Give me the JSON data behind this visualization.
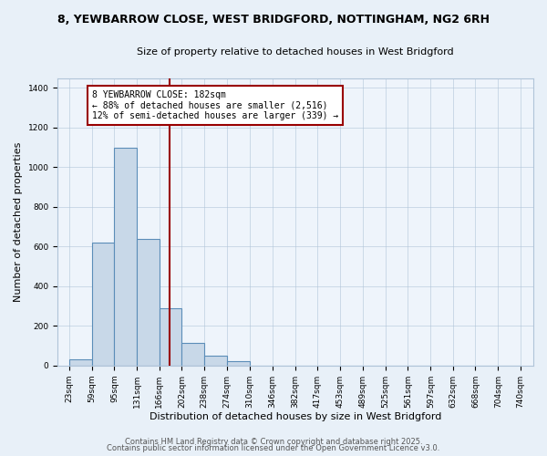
{
  "title": "8, YEWBARROW CLOSE, WEST BRIDGFORD, NOTTINGHAM, NG2 6RH",
  "subtitle": "Size of property relative to detached houses in West Bridgford",
  "xlabel": "Distribution of detached houses by size in West Bridgford",
  "ylabel": "Number of detached properties",
  "bar_left_edges": [
    23,
    59,
    95,
    131,
    166,
    202,
    238,
    274,
    310,
    346,
    382,
    417,
    453,
    489,
    525,
    561,
    597,
    632,
    668,
    704
  ],
  "bar_heights": [
    30,
    620,
    1100,
    640,
    290,
    115,
    50,
    20,
    0,
    0,
    0,
    0,
    0,
    0,
    0,
    0,
    0,
    0,
    0,
    0
  ],
  "bin_width": 36,
  "bar_color": "#c8d8e8",
  "bar_edge_color": "#5b8db8",
  "vline_x": 182,
  "vline_color": "#990000",
  "annotation_text": "8 YEWBARROW CLOSE: 182sqm\n← 88% of detached houses are smaller (2,516)\n12% of semi-detached houses are larger (339) →",
  "annotation_box_facecolor": "#ffffff",
  "annotation_box_edgecolor": "#990000",
  "ylim": [
    0,
    1450
  ],
  "yticks": [
    0,
    200,
    400,
    600,
    800,
    1000,
    1200,
    1400
  ],
  "xlim": [
    5,
    760
  ],
  "tick_labels": [
    "23sqm",
    "59sqm",
    "95sqm",
    "131sqm",
    "166sqm",
    "202sqm",
    "238sqm",
    "274sqm",
    "310sqm",
    "346sqm",
    "382sqm",
    "417sqm",
    "453sqm",
    "489sqm",
    "525sqm",
    "561sqm",
    "597sqm",
    "632sqm",
    "668sqm",
    "704sqm",
    "740sqm"
  ],
  "tick_positions": [
    23,
    59,
    95,
    131,
    166,
    202,
    238,
    274,
    310,
    346,
    382,
    417,
    453,
    489,
    525,
    561,
    597,
    632,
    668,
    704,
    740
  ],
  "footer_line1": "Contains HM Land Registry data © Crown copyright and database right 2025.",
  "footer_line2": "Contains public sector information licensed under the Open Government Licence v3.0.",
  "bg_color": "#e8f0f8",
  "plot_bg_color": "#eef4fb",
  "grid_color": "#b0c4d8",
  "title_fontsize": 9,
  "subtitle_fontsize": 8,
  "axis_label_fontsize": 8,
  "tick_fontsize": 6.5,
  "annotation_fontsize": 7,
  "footer_fontsize": 6
}
